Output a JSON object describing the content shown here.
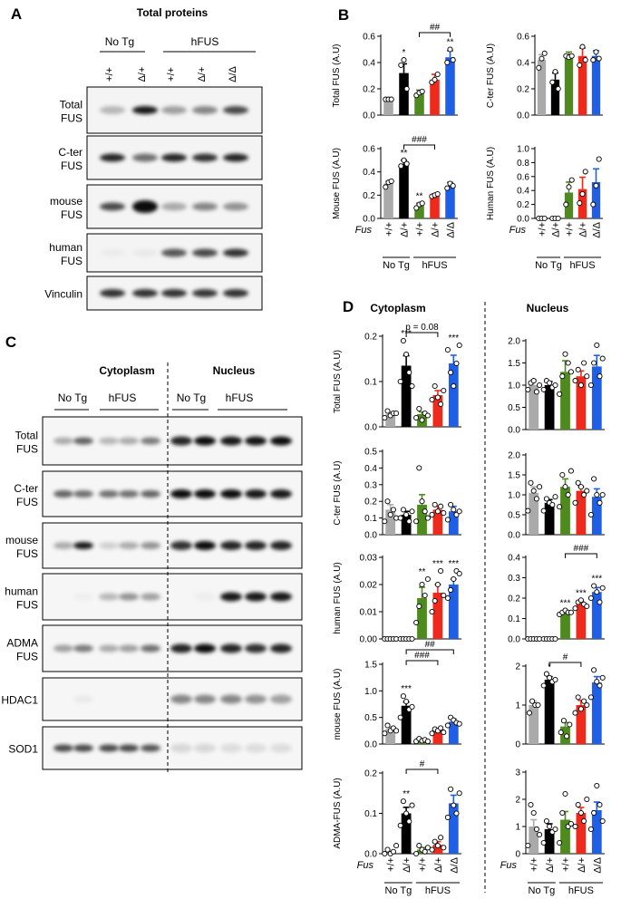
{
  "panels": {
    "a": "A",
    "b": "B",
    "c": "C",
    "d": "D"
  },
  "panel_a": {
    "title": "Total proteins",
    "groups": [
      "No Tg",
      "hFUS"
    ],
    "genotypes": [
      "+/+",
      "Δ/+",
      "+/+",
      "Δ/+",
      "Δ/Δ"
    ],
    "blots": [
      {
        "line1": "Total",
        "line2": "FUS"
      },
      {
        "line1": "C-ter",
        "line2": "FUS"
      },
      {
        "line1": "mouse",
        "line2": "FUS"
      },
      {
        "line1": "human",
        "line2": "FUS"
      },
      {
        "line1": "Vinculin",
        "line2": ""
      }
    ]
  },
  "panel_c": {
    "fractions": [
      "Cytoplasm",
      "Nucleus"
    ],
    "groups": [
      "No Tg",
      "hFUS"
    ],
    "genotypes": [
      "+/+",
      "Δ/+",
      "+/+",
      "Δ/+",
      "Δ/Δ"
    ],
    "blots": [
      {
        "line1": "Total",
        "line2": "FUS"
      },
      {
        "line1": "C-ter",
        "line2": "FUS"
      },
      {
        "line1": "mouse",
        "line2": "FUS"
      },
      {
        "line1": "human",
        "line2": "FUS"
      },
      {
        "line1": "ADMA",
        "line2": "FUS"
      },
      {
        "line1": "HDAC1",
        "line2": ""
      },
      {
        "line1": "SOD1",
        "line2": ""
      }
    ]
  },
  "legend": {
    "fus_label": "Fus",
    "genotypes": [
      "+/+",
      "Δ/+",
      "+/+",
      "Δ/+",
      "Δ/Δ"
    ],
    "groups": [
      "No Tg",
      "hFUS"
    ]
  },
  "panel_d_headers": [
    "Cytoplasm",
    "Nucleus"
  ],
  "colors": {
    "wt": "#aaaaaa",
    "dplus_notg": "#000000",
    "hfus_wt": "#4e8a1e",
    "hfus_dplus": "#ee2a1c",
    "hfus_dd": "#1f5fe6"
  },
  "chart_data": [
    {
      "id": "b-total",
      "type": "bar",
      "title": "",
      "xlabel": "",
      "ylabel": "Total FUS (A.U)",
      "ylim": [
        0,
        0.6
      ],
      "ticks": [
        "0.0",
        "0.2",
        "0.4",
        "0.6"
      ],
      "values": [
        0.12,
        0.32,
        0.17,
        0.27,
        0.44
      ],
      "errors": [
        0.01,
        0.07,
        0.02,
        0.04,
        0.05
      ],
      "points": [
        [
          0.12,
          0.12,
          0.12
        ],
        [
          0.38,
          0.42,
          0.2
        ],
        [
          0.15,
          0.17,
          0.18
        ],
        [
          0.25,
          0.27,
          0.31
        ],
        [
          0.4,
          0.5,
          0.42
        ]
      ],
      "stars": [
        "",
        "*",
        "",
        "",
        "**"
      ],
      "brackets": [
        {
          "from": 2,
          "to": 4,
          "label": "##"
        }
      ]
    },
    {
      "id": "b-cter",
      "type": "bar",
      "title": "",
      "xlabel": "",
      "ylabel": "C-ter FUS (A.U)",
      "ylim": [
        0,
        0.6
      ],
      "ticks": [
        "0.0",
        "0.2",
        "0.4",
        "0.6"
      ],
      "values": [
        0.42,
        0.27,
        0.45,
        0.45,
        0.45
      ],
      "errors": [
        0.04,
        0.05,
        0.03,
        0.06,
        0.04
      ],
      "points": [
        [
          0.36,
          0.43,
          0.47
        ],
        [
          0.25,
          0.33,
          0.2
        ],
        [
          0.45,
          0.44,
          0.45
        ],
        [
          0.38,
          0.52,
          0.42
        ],
        [
          0.42,
          0.48,
          0.43
        ]
      ],
      "stars": [
        "",
        "",
        "",
        "",
        ""
      ],
      "brackets": []
    },
    {
      "id": "b-mouse",
      "type": "bar",
      "title": "",
      "xlabel": "",
      "ylabel": "Mouse FUS (A.U)",
      "ylim": [
        0,
        0.6
      ],
      "ticks": [
        "0.0",
        "0.2",
        "0.4",
        "0.6"
      ],
      "values": [
        0.3,
        0.47,
        0.11,
        0.2,
        0.28
      ],
      "errors": [
        0.02,
        0.03,
        0.02,
        0.01,
        0.03
      ],
      "points": [
        [
          0.27,
          0.31,
          0.32
        ],
        [
          0.45,
          0.5,
          0.47
        ],
        [
          0.09,
          0.12,
          0.13
        ],
        [
          0.19,
          0.2,
          0.21
        ],
        [
          0.26,
          0.3,
          0.28
        ]
      ],
      "stars": [
        "",
        "**",
        "**",
        "",
        ""
      ],
      "brackets": [
        {
          "from": 1,
          "to": 3,
          "label": "###"
        }
      ]
    },
    {
      "id": "b-human",
      "type": "bar",
      "title": "",
      "xlabel": "",
      "ylabel": "Human FUS (A.U)",
      "ylim": [
        0,
        1.0
      ],
      "ticks": [
        "0.0",
        "0.2",
        "0.4",
        "0.6",
        "0.8",
        "1.0"
      ],
      "values": [
        0.0,
        0.0,
        0.37,
        0.42,
        0.52
      ],
      "errors": [
        0.0,
        0.0,
        0.15,
        0.17,
        0.19
      ],
      "points": [
        [
          0.0,
          0.0,
          0.0
        ],
        [
          0.0,
          0.0,
          0.0
        ],
        [
          0.2,
          0.45,
          0.55
        ],
        [
          0.22,
          0.35,
          0.67
        ],
        [
          0.2,
          0.47,
          0.85
        ]
      ],
      "stars": [
        "",
        "",
        "",
        "",
        ""
      ],
      "brackets": []
    },
    {
      "id": "d-cyt-total",
      "type": "bar",
      "title": "",
      "xlabel": "",
      "ylabel": "Total FUS (A.U)",
      "ylim": [
        0,
        0.2
      ],
      "ticks": [
        "0.0",
        "0.1",
        "0.2"
      ],
      "values": [
        0.028,
        0.135,
        0.028,
        0.07,
        0.14
      ],
      "errors": [
        0.005,
        0.022,
        0.005,
        0.01,
        0.018
      ],
      "points": [
        [
          0.02,
          0.035,
          0.025,
          0.03,
          0.03
        ],
        [
          0.1,
          0.19,
          0.16,
          0.12,
          0.09
        ],
        [
          0.02,
          0.04,
          0.015,
          0.03,
          0.025
        ],
        [
          0.06,
          0.09,
          0.065,
          0.05,
          0.08
        ],
        [
          0.17,
          0.12,
          0.09,
          0.14,
          0.18
        ]
      ],
      "stars": [
        "",
        "***",
        "",
        "",
        "***"
      ],
      "brackets": [
        {
          "from": 1,
          "to": 3,
          "label": "p = 0.08"
        }
      ]
    },
    {
      "id": "d-nuc-total",
      "type": "bar",
      "title": "",
      "xlabel": "",
      "ylabel": "",
      "ylim": [
        0,
        2.0
      ],
      "ticks": [
        "0.0",
        "0.5",
        "1.0",
        "1.5",
        "2.0"
      ],
      "values": [
        1.0,
        1.0,
        1.3,
        1.2,
        1.42
      ],
      "errors": [
        0.12,
        0.08,
        0.25,
        0.12,
        0.25
      ],
      "points": [
        [
          0.9,
          1.05,
          1.1,
          0.85,
          1.0
        ],
        [
          0.9,
          1.1,
          1.05,
          0.95,
          1.0
        ],
        [
          0.8,
          1.2,
          1.7,
          1.5,
          1.3
        ],
        [
          1.1,
          1.35,
          1.0,
          1.5,
          1.2
        ],
        [
          1.0,
          1.5,
          1.9,
          1.2,
          1.6
        ]
      ],
      "stars": [
        "",
        "",
        "",
        "",
        ""
      ],
      "brackets": []
    },
    {
      "id": "d-cyt-cter",
      "type": "bar",
      "title": "",
      "xlabel": "",
      "ylabel": "C-ter FUS (A.U)",
      "ylim": [
        0,
        0.5
      ],
      "ticks": [
        "0.0",
        "0.1",
        "0.2",
        "0.3",
        "0.4",
        "0.5"
      ],
      "values": [
        0.15,
        0.12,
        0.18,
        0.15,
        0.14
      ],
      "errors": [
        0.03,
        0.02,
        0.06,
        0.02,
        0.03
      ],
      "points": [
        [
          0.08,
          0.2,
          0.12,
          0.15,
          0.1
        ],
        [
          0.1,
          0.15,
          0.12,
          0.08,
          0.14
        ],
        [
          0.08,
          0.4,
          0.2,
          0.14,
          0.1
        ],
        [
          0.12,
          0.18,
          0.14,
          0.17,
          0.13
        ],
        [
          0.09,
          0.18,
          0.15,
          0.12,
          0.14
        ]
      ],
      "stars": [
        "",
        "",
        "",
        "",
        ""
      ],
      "brackets": []
    },
    {
      "id": "d-nuc-cter",
      "type": "bar",
      "title": "",
      "xlabel": "",
      "ylabel": "",
      "ylim": [
        0,
        2.0
      ],
      "ticks": [
        "0.0",
        "0.5",
        "1.0",
        "1.5",
        "2.0"
      ],
      "values": [
        1.05,
        0.8,
        1.2,
        1.1,
        0.95
      ],
      "errors": [
        0.15,
        0.08,
        0.2,
        0.1,
        0.2
      ],
      "points": [
        [
          0.6,
          1.3,
          1.1,
          0.9,
          1.2
        ],
        [
          0.6,
          0.9,
          0.8,
          0.75,
          0.95
        ],
        [
          0.7,
          1.5,
          1.2,
          1.0,
          1.6
        ],
        [
          0.8,
          1.3,
          1.2,
          1.0,
          1.1
        ],
        [
          0.5,
          1.4,
          1.0,
          0.8,
          1.0
        ]
      ],
      "stars": [
        "",
        "",
        "",
        "",
        ""
      ],
      "brackets": []
    },
    {
      "id": "d-cyt-human",
      "type": "bar",
      "title": "",
      "xlabel": "",
      "ylabel": "human FUS (A.U)",
      "ylim": [
        0,
        0.03
      ],
      "ticks": [
        "0.00",
        "0.01",
        "0.02",
        "0.03"
      ],
      "values": [
        0.0,
        0.0,
        0.015,
        0.017,
        0.02
      ],
      "errors": [
        0.0,
        0.0,
        0.004,
        0.003,
        0.002
      ],
      "points": [
        [
          0.0,
          0.0,
          0.0,
          0.0,
          0.0
        ],
        [
          0.0,
          0.0,
          0.0,
          0.0,
          0.0
        ],
        [
          0.006,
          0.012,
          0.02,
          0.016,
          0.022
        ],
        [
          0.01,
          0.014,
          0.02,
          0.025,
          0.016
        ],
        [
          0.015,
          0.018,
          0.022,
          0.025,
          0.024
        ]
      ],
      "stars": [
        "",
        "",
        "**",
        "***",
        "***"
      ],
      "brackets": []
    },
    {
      "id": "d-nuc-human",
      "type": "bar",
      "title": "",
      "xlabel": "",
      "ylabel": "",
      "ylim": [
        0,
        0.4
      ],
      "ticks": [
        "0.0",
        "0.1",
        "0.2",
        "0.3",
        "0.4"
      ],
      "values": [
        0.0,
        0.0,
        0.13,
        0.17,
        0.23
      ],
      "errors": [
        0.0,
        0.0,
        0.005,
        0.012,
        0.022
      ],
      "points": [
        [
          0.0,
          0.0,
          0.0,
          0.0,
          0.0
        ],
        [
          0.0,
          0.0,
          0.0,
          0.0,
          0.0
        ],
        [
          0.12,
          0.13,
          0.14,
          0.13,
          0.13
        ],
        [
          0.15,
          0.18,
          0.19,
          0.17,
          0.16
        ],
        [
          0.2,
          0.26,
          0.23,
          0.18,
          0.25
        ]
      ],
      "stars": [
        "",
        "",
        "***",
        "***",
        "***"
      ],
      "brackets": [
        {
          "from": 2,
          "to": 4,
          "label": "###"
        }
      ]
    },
    {
      "id": "d-cyt-mouse",
      "type": "bar",
      "title": "",
      "xlabel": "",
      "ylabel": "mouse FUS (A.U)",
      "ylim": [
        0,
        1.5
      ],
      "ticks": [
        "0.0",
        "0.5",
        "1.0",
        "1.5"
      ],
      "values": [
        0.28,
        0.72,
        0.07,
        0.25,
        0.42
      ],
      "errors": [
        0.04,
        0.07,
        0.02,
        0.03,
        0.05
      ],
      "points": [
        [
          0.2,
          0.35,
          0.25,
          0.3,
          0.25
        ],
        [
          0.5,
          0.9,
          0.8,
          0.65,
          0.7
        ],
        [
          0.05,
          0.1,
          0.06,
          0.08,
          0.05
        ],
        [
          0.2,
          0.28,
          0.25,
          0.3,
          0.22
        ],
        [
          0.35,
          0.5,
          0.45,
          0.4,
          0.38
        ]
      ],
      "stars": [
        "",
        "***",
        "",
        "",
        ""
      ],
      "brackets": [
        {
          "from": 1,
          "to": 3,
          "label": "###"
        },
        {
          "from": 1,
          "to": 4,
          "label": "##"
        }
      ]
    },
    {
      "id": "d-nuc-mouse",
      "type": "bar",
      "title": "",
      "xlabel": "",
      "ylabel": "",
      "ylim": [
        0,
        2.0
      ],
      "ticks": [
        "0",
        "1",
        "2"
      ],
      "values": [
        1.0,
        1.65,
        0.45,
        1.0,
        1.58
      ],
      "errors": [
        0.1,
        0.08,
        0.1,
        0.12,
        0.15
      ],
      "points": [
        [
          0.8,
          1.1,
          1.0,
          1.0
        ],
        [
          1.5,
          1.8,
          1.7,
          1.6,
          1.65
        ],
        [
          0.3,
          0.6,
          0.2,
          0.5
        ],
        [
          0.8,
          1.2,
          0.9,
          1.1,
          1.0
        ],
        [
          1.2,
          1.9,
          1.6,
          1.5,
          1.7
        ]
      ],
      "stars": [
        "",
        "*",
        "",
        "",
        ""
      ],
      "brackets": [
        {
          "from": 1,
          "to": 3,
          "label": "#"
        }
      ]
    },
    {
      "id": "d-cyt-adma",
      "type": "bar",
      "title": "",
      "xlabel": "",
      "ylabel": "ADMA-FUS (A.U)",
      "ylim": [
        0,
        0.2
      ],
      "ticks": [
        "0.0",
        "0.1",
        "0.2"
      ],
      "values": [
        0.003,
        0.1,
        0.01,
        0.022,
        0.125
      ],
      "errors": [
        0.003,
        0.015,
        0.005,
        0.008,
        0.02
      ],
      "points": [
        [
          0.0,
          0.01,
          0.0,
          0.005,
          0.02
        ],
        [
          0.07,
          0.13,
          0.1,
          0.08,
          0.12
        ],
        [
          0.0,
          0.02,
          0.01,
          0.005,
          0.015
        ],
        [
          0.01,
          0.03,
          0.02,
          0.04,
          0.015
        ],
        [
          0.09,
          0.16,
          0.12,
          0.1,
          0.15
        ]
      ],
      "stars": [
        "",
        "**",
        "",
        "",
        ""
      ],
      "brackets": [
        {
          "from": 1,
          "to": 3,
          "label": "#"
        }
      ]
    },
    {
      "id": "d-nuc-adma",
      "type": "bar",
      "title": "",
      "xlabel": "",
      "ylabel": "",
      "ylim": [
        0,
        3.0
      ],
      "ticks": [
        "0",
        "1",
        "2",
        "3"
      ],
      "values": [
        1.0,
        0.9,
        1.25,
        1.5,
        1.6
      ],
      "errors": [
        0.25,
        0.2,
        0.3,
        0.2,
        0.3
      ],
      "points": [
        [
          0.3,
          1.8,
          1.5,
          0.9,
          0.7
        ],
        [
          0.4,
          1.2,
          1.0,
          0.8,
          0.9
        ],
        [
          0.4,
          1.5,
          2.2,
          1.0,
          1.1
        ],
        [
          1.0,
          1.8,
          1.5,
          1.2,
          2.0
        ],
        [
          0.9,
          1.5,
          2.5,
          1.8,
          1.2
        ]
      ],
      "stars": [
        "",
        "",
        "",
        "",
        ""
      ],
      "brackets": []
    }
  ]
}
